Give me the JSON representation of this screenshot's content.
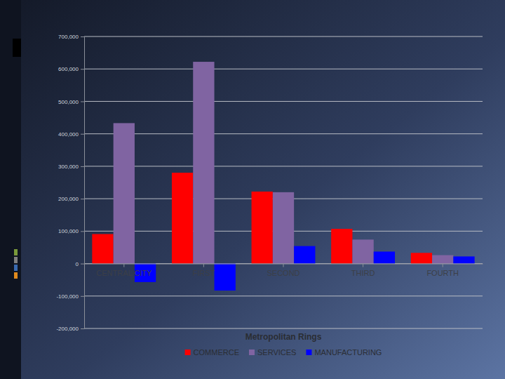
{
  "chart_data": {
    "type": "bar",
    "x_label": "Metropolitan Rings",
    "categories": [
      "CENTRAL CITY",
      "FIRST",
      "SECOND",
      "THIRD",
      "FOURTH"
    ],
    "series": [
      {
        "name": "COMMERCE",
        "color": "#ff0000",
        "values": [
          91000,
          280000,
          222000,
          107000,
          33000
        ]
      },
      {
        "name": "SERVICES",
        "color": "#8064a2",
        "values": [
          433000,
          622000,
          220000,
          74000,
          26000
        ]
      },
      {
        "name": "MANUFACTURING",
        "color": "#0000ff",
        "values": [
          -57000,
          -83000,
          54000,
          37000,
          22000
        ]
      }
    ],
    "ylim": [
      -200000,
      700000
    ],
    "yticks": [
      {
        "value": -200000,
        "label": "-200,000"
      },
      {
        "value": -100000,
        "label": "-100,000"
      },
      0,
      {
        "value": 100000,
        "label": "100,000"
      },
      {
        "value": 200000,
        "label": "200,000"
      },
      {
        "value": 300000,
        "label": "300,000"
      },
      {
        "value": 400000,
        "label": "400,000"
      },
      {
        "value": 500000,
        "label": "500,000"
      },
      {
        "value": 600000,
        "label": "600,000"
      },
      {
        "value": 700000,
        "label": "700,000"
      }
    ],
    "grid": true,
    "legend": "bottom"
  }
}
